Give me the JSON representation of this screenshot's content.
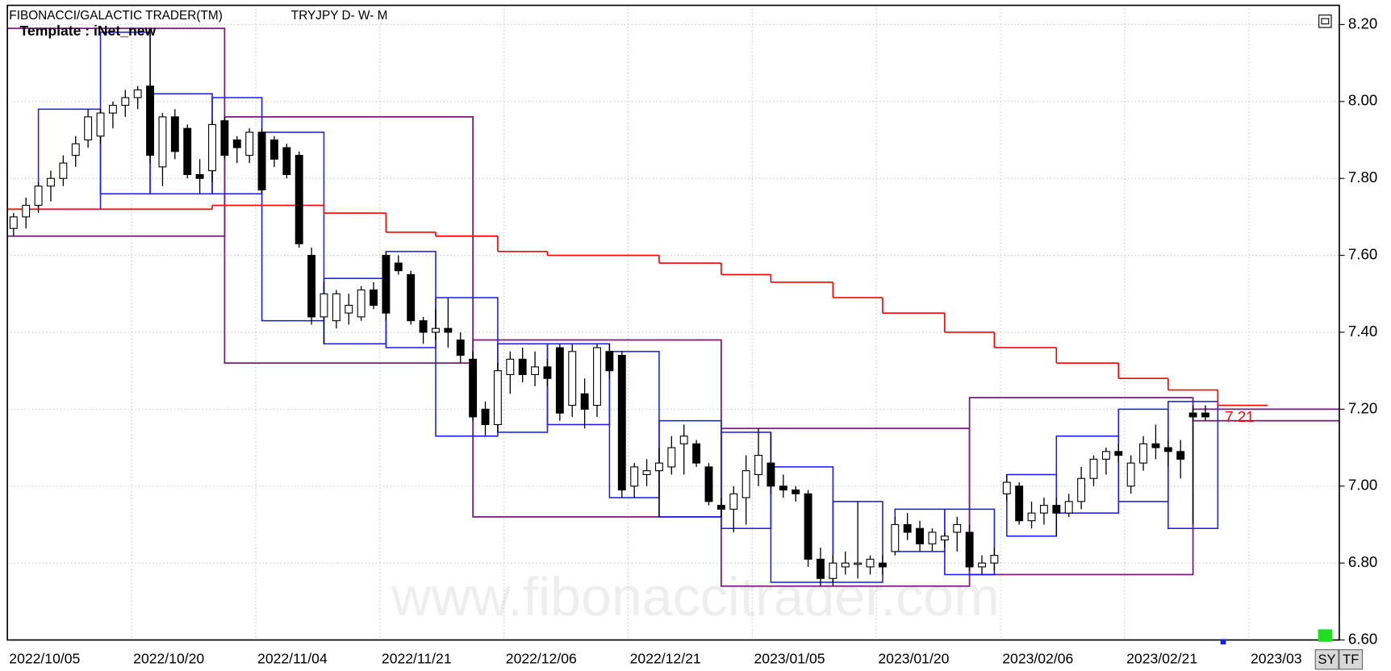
{
  "header": {
    "title": "FIBONACCI/GALACTIC TRADER(TM)",
    "symbol": "TRYJPY D- W- M",
    "template": "Template : iNet_new"
  },
  "watermark": "www.fibonaccitrader.com",
  "buttons": [
    "SY",
    "TF"
  ],
  "chart_data": {
    "type": "candlestick",
    "categories": [
      "2022/10/05",
      null,
      null,
      null,
      null,
      null,
      null,
      null,
      null,
      null,
      "2022/10/20",
      null,
      null,
      null,
      null,
      null,
      null,
      null,
      null,
      null,
      "2022/11/04",
      null,
      null,
      null,
      null,
      null,
      null,
      null,
      null,
      null,
      "2022/11/21",
      null,
      null,
      null,
      null,
      null,
      null,
      null,
      null,
      null,
      "2022/12/06",
      null,
      null,
      null,
      null,
      null,
      null,
      null,
      null,
      null,
      "2022/12/21",
      null,
      null,
      null,
      null,
      null,
      null,
      null,
      null,
      null,
      "2023/01/05",
      null,
      null,
      null,
      null,
      null,
      null,
      null,
      null,
      null,
      "2023/01/20",
      null,
      null,
      null,
      null,
      null,
      null,
      null,
      null,
      null,
      "2023/02/06",
      null,
      null,
      null,
      null,
      null,
      null,
      null,
      null,
      null,
      "2023/02/21",
      null,
      null,
      null,
      null,
      null,
      null,
      null,
      null,
      null,
      "2023/03",
      null,
      null,
      null,
      null,
      null,
      null,
      null
    ],
    "open": [
      7.67,
      7.7,
      7.73,
      7.78,
      7.8,
      7.86,
      7.9,
      7.91,
      7.97,
      7.99,
      8.01,
      8.04,
      7.83,
      7.96,
      7.93,
      7.81,
      7.82,
      7.95,
      7.9,
      7.86,
      7.92,
      7.9,
      7.88,
      7.86,
      7.6,
      7.44,
      7.43,
      7.45,
      7.44,
      7.51,
      7.6,
      7.58,
      7.55,
      7.43,
      7.4,
      7.41,
      7.38,
      7.33,
      7.2,
      7.16,
      7.29,
      7.33,
      7.29,
      7.31,
      7.36,
      7.21,
      7.24,
      7.21,
      7.35,
      7.34,
      7.0,
      7.03,
      7.04,
      7.05,
      7.11,
      7.11,
      7.05,
      6.95,
      6.94,
      6.97,
      7.03,
      7.06,
      7.0,
      6.99,
      6.98,
      6.81,
      6.76,
      6.79,
      6.8,
      6.79,
      6.8,
      6.83,
      6.9,
      6.89,
      6.85,
      6.86,
      6.88,
      6.88,
      6.79,
      6.8,
      6.98,
      7.0,
      6.91,
      6.93,
      6.95,
      6.93,
      6.96,
      7.02,
      7.07,
      7.09,
      7.0,
      7.06,
      7.11,
      7.1,
      7.09,
      7.19,
      7.19,
      null,
      null,
      null,
      null,
      null,
      null,
      null,
      null,
      null,
      null,
      null
    ],
    "high": [
      7.71,
      7.75,
      7.79,
      7.82,
      7.86,
      7.91,
      7.98,
      7.98,
      8.0,
      8.03,
      8.04,
      8.19,
      7.97,
      7.98,
      7.94,
      7.85,
      7.95,
      7.96,
      7.91,
      7.93,
      7.93,
      7.91,
      7.89,
      7.87,
      7.62,
      7.53,
      7.51,
      7.5,
      7.52,
      7.53,
      7.61,
      7.6,
      7.56,
      7.44,
      7.46,
      7.49,
      7.4,
      7.35,
      7.22,
      7.32,
      7.35,
      7.36,
      7.35,
      7.33,
      7.37,
      7.37,
      7.28,
      7.37,
      7.37,
      7.35,
      7.06,
      7.07,
      7.1,
      7.13,
      7.16,
      7.12,
      7.06,
      6.97,
      7.0,
      7.08,
      7.15,
      7.14,
      7.03,
      7.0,
      6.99,
      6.84,
      6.82,
      6.83,
      6.96,
      6.82,
      6.82,
      6.92,
      6.93,
      6.91,
      6.89,
      6.88,
      6.92,
      6.9,
      6.82,
      6.84,
      7.03,
      7.01,
      6.96,
      6.97,
      6.97,
      6.98,
      7.05,
      7.08,
      7.1,
      7.11,
      7.08,
      7.13,
      7.16,
      7.12,
      7.12,
      7.21,
      7.21,
      null,
      null,
      null,
      null,
      null,
      null,
      null,
      null,
      null,
      null,
      null
    ],
    "low": [
      7.65,
      7.67,
      7.71,
      7.74,
      7.78,
      7.83,
      7.88,
      7.89,
      7.93,
      7.96,
      7.98,
      7.84,
      7.78,
      7.85,
      7.8,
      7.76,
      7.79,
      7.85,
      7.84,
      7.84,
      7.76,
      7.83,
      7.8,
      7.62,
      7.42,
      7.37,
      7.41,
      7.42,
      7.43,
      7.46,
      7.43,
      7.55,
      7.42,
      7.37,
      7.38,
      7.36,
      7.32,
      7.17,
      7.13,
      7.14,
      7.24,
      7.27,
      7.26,
      7.26,
      7.17,
      7.18,
      7.15,
      7.18,
      7.28,
      6.97,
      6.97,
      7.0,
      6.92,
      7.03,
      7.03,
      7.05,
      6.95,
      6.92,
      6.88,
      6.9,
      7.0,
      6.98,
      6.97,
      6.96,
      6.79,
      6.74,
      6.74,
      6.77,
      6.76,
      6.77,
      6.77,
      6.82,
      6.86,
      6.83,
      6.83,
      6.84,
      6.83,
      6.78,
      6.77,
      6.78,
      6.96,
      6.9,
      6.89,
      6.9,
      6.87,
      6.92,
      6.94,
      7.0,
      7.03,
      7.06,
      6.98,
      7.04,
      7.07,
      7.05,
      7.02,
      6.9,
      7.17,
      null,
      null,
      null,
      null,
      null,
      null,
      null,
      null,
      null,
      null,
      null
    ],
    "close": [
      7.7,
      7.73,
      7.78,
      7.8,
      7.84,
      7.89,
      7.96,
      7.97,
      7.99,
      8.01,
      8.03,
      7.86,
      7.96,
      7.87,
      7.81,
      7.8,
      7.94,
      7.86,
      7.88,
      7.92,
      7.77,
      7.85,
      7.81,
      7.63,
      7.44,
      7.5,
      7.5,
      7.47,
      7.51,
      7.47,
      7.45,
      7.56,
      7.43,
      7.4,
      7.41,
      7.4,
      7.34,
      7.18,
      7.16,
      7.3,
      7.33,
      7.29,
      7.31,
      7.28,
      7.19,
      7.35,
      7.2,
      7.36,
      7.3,
      6.99,
      7.05,
      7.04,
      7.06,
      7.1,
      7.13,
      7.06,
      6.96,
      6.94,
      6.98,
      7.04,
      7.08,
      7.0,
      6.99,
      6.98,
      6.81,
      6.76,
      6.8,
      6.8,
      6.8,
      6.81,
      6.79,
      6.9,
      6.88,
      6.85,
      6.88,
      6.87,
      6.9,
      6.79,
      6.8,
      6.82,
      7.01,
      6.91,
      6.93,
      6.95,
      6.93,
      6.96,
      7.02,
      7.07,
      7.09,
      7.08,
      7.06,
      7.11,
      7.1,
      7.09,
      7.07,
      7.18,
      7.18,
      null,
      null,
      null,
      null,
      null,
      null,
      null,
      null,
      null,
      null,
      null
    ],
    "up_color": "#ffffff",
    "down_color": "#000000",
    "ylim": [
      6.6,
      8.25
    ],
    "yticks": [
      {
        "value": 6.6,
        "label": "6.60"
      },
      {
        "value": 6.8,
        "label": "6.80"
      },
      {
        "value": 7.0,
        "label": "7.00"
      },
      {
        "value": 7.2,
        "label": "7.20"
      },
      {
        "value": 7.4,
        "label": "7.40"
      },
      {
        "value": 7.6,
        "label": "7.60"
      },
      {
        "value": 7.8,
        "label": "7.80"
      },
      {
        "value": 8.0,
        "label": "8.00"
      },
      {
        "value": 8.2,
        "label": "8.20"
      }
    ],
    "grid": true,
    "weekly_boxes": {
      "color": "#1a1aff",
      "start": [
        2,
        7,
        11,
        16,
        20,
        25,
        30,
        34,
        39,
        43,
        48,
        52,
        57,
        61,
        66,
        71,
        75,
        80,
        84,
        89,
        93
      ],
      "end": [
        7,
        11,
        16,
        20,
        25,
        30,
        34,
        39,
        43,
        48,
        52,
        57,
        61,
        66,
        70,
        75,
        79,
        84,
        89,
        93,
        97
      ],
      "high": [
        7.98,
        8.18,
        8.02,
        8.01,
        7.92,
        7.54,
        7.61,
        7.49,
        7.37,
        7.37,
        7.35,
        7.17,
        7.14,
        7.05,
        6.96,
        6.94,
        6.94,
        7.03,
        7.13,
        7.2,
        7.22
      ],
      "low": [
        7.72,
        7.76,
        7.76,
        7.76,
        7.43,
        7.37,
        7.36,
        7.13,
        7.14,
        7.16,
        6.97,
        6.92,
        6.89,
        6.75,
        6.75,
        6.83,
        6.77,
        6.87,
        6.93,
        6.96,
        6.89
      ]
    },
    "monthly_boxes": {
      "color": "#7a1a7a",
      "start": [
        -0.5,
        17,
        37,
        57,
        77,
        95
      ],
      "end": [
        17,
        37,
        57,
        77,
        95,
        108
      ],
      "high": [
        8.19,
        7.96,
        7.38,
        7.15,
        7.23,
        7.2
      ],
      "low": [
        7.65,
        7.32,
        6.92,
        6.74,
        6.77,
        7.17
      ]
    },
    "step_line": {
      "color": "#ff0000",
      "breaks": [
        -0.5,
        16,
        25,
        30,
        34,
        39,
        43,
        52,
        57,
        61,
        66,
        70,
        75,
        79,
        84,
        89,
        93,
        97,
        101
      ],
      "values": [
        7.72,
        7.73,
        7.71,
        7.66,
        7.65,
        7.61,
        7.6,
        7.58,
        7.55,
        7.53,
        7.49,
        7.45,
        7.4,
        7.36,
        7.32,
        7.28,
        7.25,
        7.21
      ]
    }
  }
}
